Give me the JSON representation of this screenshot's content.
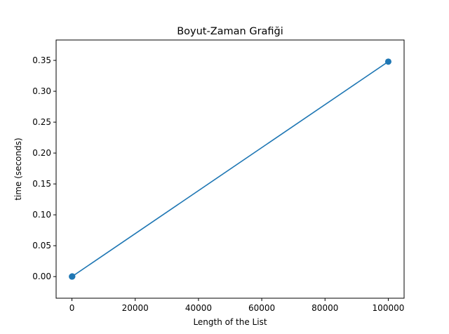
{
  "chart_data": {
    "type": "line",
    "title": "Boyut-Zaman Grafiği",
    "xlabel": "Length of the List",
    "ylabel": "time (seconds)",
    "xlim": [
      -5000,
      105000
    ],
    "ylim": [
      -0.035,
      0.383
    ],
    "xticks": [
      0,
      20000,
      40000,
      60000,
      80000,
      100000
    ],
    "yticks": [
      0.0,
      0.05,
      0.1,
      0.15,
      0.2,
      0.25,
      0.3,
      0.35
    ],
    "xtick_labels": [
      "0",
      "20000",
      "40000",
      "60000",
      "80000",
      "100000"
    ],
    "ytick_labels": [
      "0.00",
      "0.05",
      "0.10",
      "0.15",
      "0.20",
      "0.25",
      "0.30",
      "0.35"
    ],
    "grid": false,
    "series": [
      {
        "color": "#1f77b4",
        "marker": "circle",
        "points": [
          {
            "x": 10,
            "y": 0.0
          },
          {
            "x": 100,
            "y": 0.0003
          },
          {
            "x": 100000,
            "y": 0.348
          }
        ]
      }
    ]
  }
}
